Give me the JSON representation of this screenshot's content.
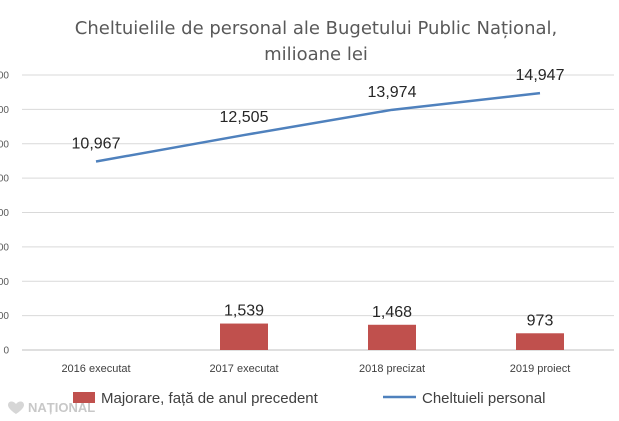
{
  "chart_data": {
    "type": "bar+line",
    "title_line1": "Cheltuielile de personal ale Bugetului Public Național,",
    "title_line2": "milioane lei",
    "categories": [
      "2016 executat",
      "2017 executat",
      "2018 precizat",
      "2019 proiect"
    ],
    "series": [
      {
        "name": "Majorare, față de anul precedent",
        "type": "bar",
        "color": "#c0504d",
        "values": [
          null,
          1539,
          1468,
          973
        ],
        "labels": [
          "",
          "1,539",
          "1,468",
          "973"
        ]
      },
      {
        "name": "Cheltuieli personal",
        "type": "line",
        "color": "#4f81bd",
        "values": [
          10967,
          12505,
          13974,
          14947
        ],
        "labels": [
          "10,967",
          "12,505",
          "13,974",
          "14,947"
        ]
      }
    ],
    "y_tick_labels": [
      "0",
      "000",
      "000",
      "000",
      "000",
      "000",
      "000",
      "000",
      "000"
    ],
    "ylim": [
      0,
      16000
    ],
    "y_step": 2000,
    "grid": true,
    "legend_position": "bottom"
  },
  "watermark": {
    "text": "NAȚIONAL",
    "icon": "heart-map-icon"
  }
}
